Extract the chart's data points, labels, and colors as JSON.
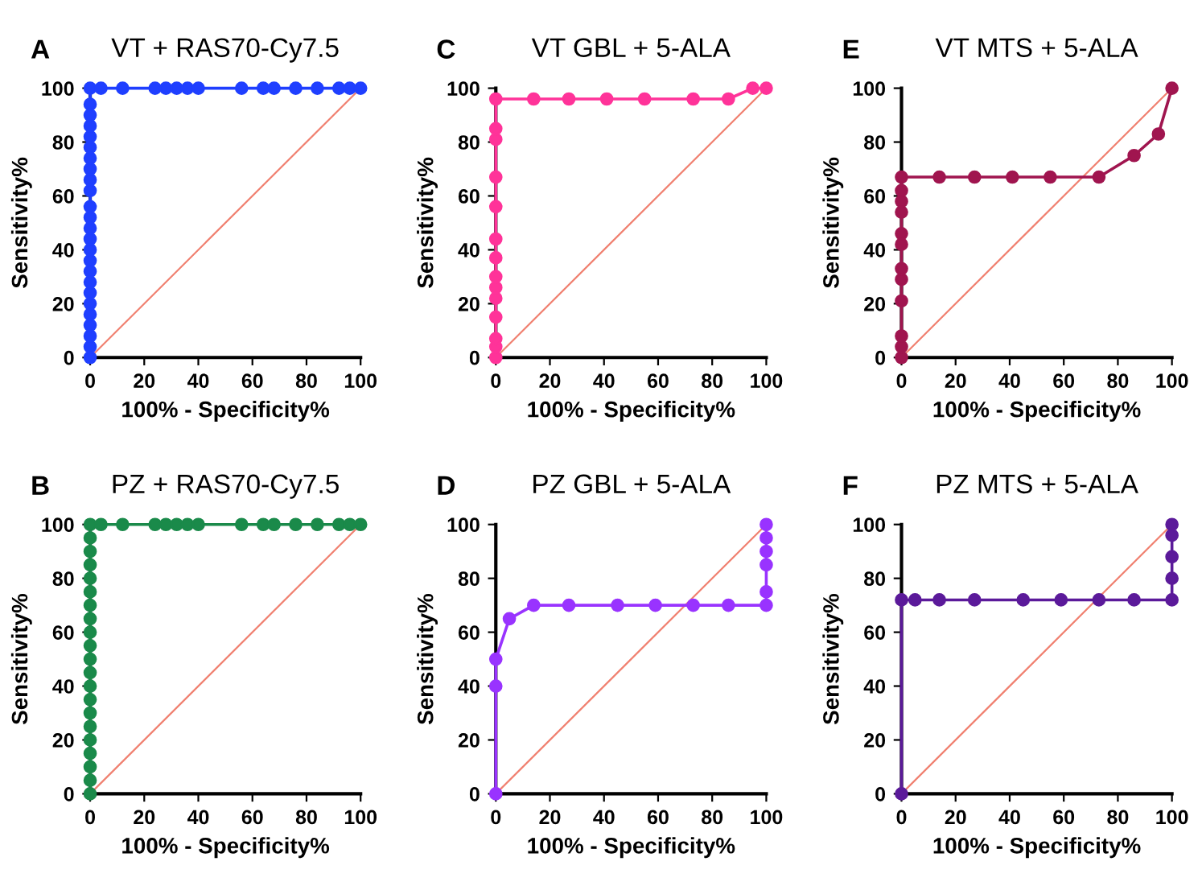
{
  "chart_data": [
    {
      "type": "line",
      "title": "VT + RAS70-Cy7.5",
      "annotations": [
        "A"
      ],
      "xlabel": "100% - Specificity%",
      "ylabel": "Sensitivity%",
      "xlim": [
        0,
        100
      ],
      "ylim": [
        0,
        100
      ],
      "xticks": [
        0,
        20,
        40,
        60,
        80,
        100
      ],
      "yticks": [
        0,
        20,
        40,
        60,
        80,
        100
      ],
      "line_style": "solid",
      "series": [
        {
          "color": "#1f3fff",
          "marker": "circle",
          "x": [
            0,
            0,
            0,
            0,
            0,
            0,
            0,
            0,
            0,
            0,
            0,
            0,
            0,
            0,
            0,
            0,
            0,
            0,
            0,
            0,
            0,
            0,
            0,
            0,
            0,
            4,
            12,
            24,
            28,
            32,
            36,
            40,
            56,
            64,
            68,
            76,
            84,
            92,
            96,
            100
          ],
          "values": [
            0,
            4,
            8,
            12,
            16,
            20,
            24,
            28,
            32,
            36,
            40,
            44,
            48,
            52,
            56,
            62,
            66,
            70,
            74,
            78,
            82,
            86,
            90,
            94,
            100,
            100,
            100,
            100,
            100,
            100,
            100,
            100,
            100,
            100,
            100,
            100,
            100,
            100,
            100,
            100
          ]
        },
        {
          "color": "#f08070",
          "marker": "none",
          "x": [
            0,
            100
          ],
          "values": [
            0,
            100
          ]
        }
      ]
    },
    {
      "type": "line",
      "title": "VT GBL + 5-ALA",
      "annotations": [
        "C"
      ],
      "xlabel": "100% - Specificity%",
      "ylabel": "Sensitivity%",
      "xlim": [
        0,
        100
      ],
      "ylim": [
        0,
        100
      ],
      "xticks": [
        0,
        20,
        40,
        60,
        80,
        100
      ],
      "yticks": [
        0,
        20,
        40,
        60,
        80,
        100
      ],
      "line_style": "solid",
      "series": [
        {
          "color": "#ff3399",
          "marker": "circle",
          "x": [
            0,
            0,
            0,
            0,
            0,
            0,
            0,
            0,
            0,
            0,
            0,
            0,
            0,
            0,
            14,
            27,
            41,
            55,
            73,
            86,
            95,
            100
          ],
          "values": [
            0,
            4,
            7,
            15,
            22,
            26,
            30,
            37,
            44,
            56,
            67,
            81,
            85,
            96,
            96,
            96,
            96,
            96,
            96,
            96,
            100,
            100
          ]
        },
        {
          "color": "#f08070",
          "marker": "none",
          "x": [
            0,
            100
          ],
          "values": [
            0,
            100
          ]
        }
      ]
    },
    {
      "type": "line",
      "title": "VT MTS + 5-ALA",
      "annotations": [
        "E"
      ],
      "xlabel": "100% - Specificity%",
      "ylabel": "Sensitivity%",
      "xlim": [
        0,
        100
      ],
      "ylim": [
        0,
        100
      ],
      "xticks": [
        0,
        20,
        40,
        60,
        80,
        100
      ],
      "yticks": [
        0,
        20,
        40,
        60,
        80,
        100
      ],
      "line_style": "solid",
      "series": [
        {
          "color": "#a0154f",
          "marker": "circle",
          "x": [
            0,
            0,
            0,
            0,
            0,
            0,
            0,
            0,
            0,
            0,
            0,
            0,
            14,
            27,
            41,
            55,
            73,
            86,
            95,
            100
          ],
          "values": [
            0,
            4,
            8,
            21,
            29,
            33,
            42,
            46,
            54,
            58,
            62,
            67,
            67,
            67,
            67,
            67,
            67,
            75,
            83,
            100
          ]
        },
        {
          "color": "#f08070",
          "marker": "none",
          "x": [
            0,
            100
          ],
          "values": [
            0,
            100
          ]
        }
      ]
    },
    {
      "type": "line",
      "title": "PZ + RAS70-Cy7.5",
      "annotations": [
        "B"
      ],
      "xlabel": "100% - Specificity%",
      "ylabel": "Sensitivity%",
      "xlim": [
        0,
        100
      ],
      "ylim": [
        0,
        100
      ],
      "xticks": [
        0,
        20,
        40,
        60,
        80,
        100
      ],
      "yticks": [
        0,
        20,
        40,
        60,
        80,
        100
      ],
      "line_style": "solid",
      "series": [
        {
          "color": "#1a8a4a",
          "marker": "circle",
          "x": [
            0,
            0,
            0,
            0,
            0,
            0,
            0,
            0,
            0,
            0,
            0,
            0,
            0,
            0,
            0,
            0,
            0,
            0,
            0,
            0,
            0,
            4,
            12,
            24,
            28,
            32,
            36,
            40,
            56,
            64,
            68,
            76,
            84,
            92,
            96,
            100
          ],
          "values": [
            0,
            5,
            10,
            15,
            20,
            25,
            30,
            35,
            40,
            45,
            50,
            55,
            60,
            65,
            70,
            75,
            80,
            85,
            90,
            95,
            100,
            100,
            100,
            100,
            100,
            100,
            100,
            100,
            100,
            100,
            100,
            100,
            100,
            100,
            100,
            100
          ]
        },
        {
          "color": "#f08070",
          "marker": "none",
          "x": [
            0,
            100
          ],
          "values": [
            0,
            100
          ]
        }
      ]
    },
    {
      "type": "line",
      "title": "PZ GBL + 5-ALA",
      "annotations": [
        "D"
      ],
      "xlabel": "100% - Specificity%",
      "ylabel": "Sensitivity%",
      "xlim": [
        0,
        100
      ],
      "ylim": [
        0,
        100
      ],
      "xticks": [
        0,
        20,
        40,
        60,
        80,
        100
      ],
      "yticks": [
        0,
        20,
        40,
        60,
        80,
        100
      ],
      "line_style": "solid",
      "series": [
        {
          "color": "#9933ff",
          "marker": "circle",
          "x": [
            0,
            0,
            0,
            5,
            14,
            27,
            45,
            59,
            73,
            86,
            100,
            100,
            100,
            100,
            100,
            100
          ],
          "values": [
            0,
            40,
            50,
            65,
            70,
            70,
            70,
            70,
            70,
            70,
            70,
            75,
            85,
            90,
            95,
            100
          ]
        },
        {
          "color": "#f08070",
          "marker": "none",
          "x": [
            0,
            100
          ],
          "values": [
            0,
            100
          ]
        }
      ]
    },
    {
      "type": "line",
      "title": "PZ MTS + 5-ALA",
      "annotations": [
        "F"
      ],
      "xlabel": "100% - Specificity%",
      "ylabel": "Sensitivity%",
      "xlim": [
        0,
        100
      ],
      "ylim": [
        0,
        100
      ],
      "xticks": [
        0,
        20,
        40,
        60,
        80,
        100
      ],
      "yticks": [
        0,
        20,
        40,
        60,
        80,
        100
      ],
      "line_style": "solid",
      "series": [
        {
          "color": "#5b1a9a",
          "marker": "circle",
          "x": [
            0,
            0,
            5,
            14,
            27,
            45,
            59,
            73,
            86,
            100,
            100,
            100,
            100,
            100
          ],
          "values": [
            0,
            72,
            72,
            72,
            72,
            72,
            72,
            72,
            72,
            72,
            80,
            88,
            96,
            100
          ]
        },
        {
          "color": "#f08070",
          "marker": "none",
          "x": [
            0,
            100
          ],
          "values": [
            0,
            100
          ]
        }
      ]
    }
  ]
}
